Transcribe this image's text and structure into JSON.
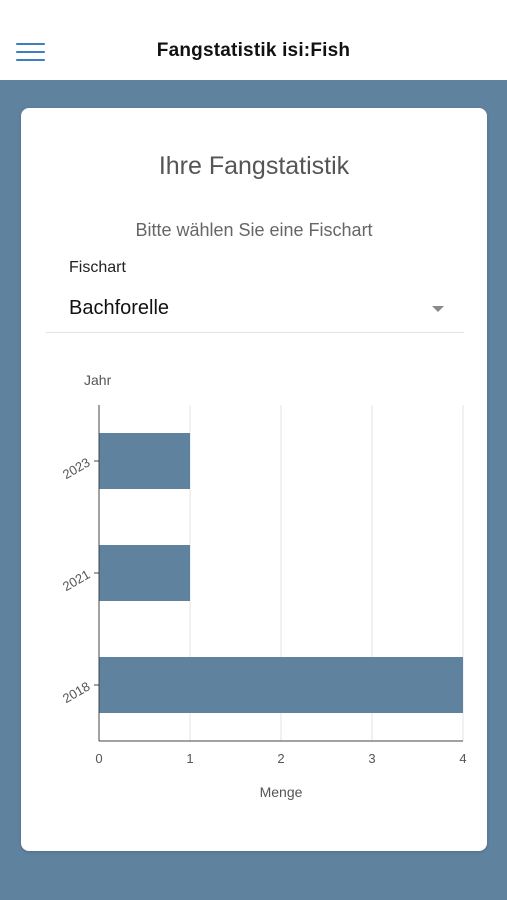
{
  "header": {
    "title": "Fangstatistik isi:Fish",
    "menu_icon": "hamburger-menu-icon"
  },
  "card": {
    "title": "Ihre Fangstatistik",
    "subtitle": "Bitte wählen Sie eine Fischart",
    "field_label": "Fischart",
    "selected_species": "Bachforelle"
  },
  "colors": {
    "background": "#5f829f",
    "bar": "#5f829f",
    "menu_accent": "#3b7fc1"
  },
  "chart_data": {
    "type": "bar",
    "orientation": "horizontal",
    "categories": [
      "2023",
      "2021",
      "2018"
    ],
    "values": [
      1,
      1,
      4
    ],
    "xlabel": "Menge",
    "ylabel": "Jahr",
    "xlim": [
      0,
      4
    ],
    "xticks": [
      "0",
      "1",
      "2",
      "3",
      "4"
    ],
    "grid": true
  }
}
